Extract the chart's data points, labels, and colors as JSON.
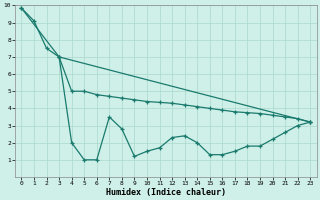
{
  "xlabel": "Humidex (Indice chaleur)",
  "bg_color": "#cff0e8",
  "grid_color": "#aad8cc",
  "line_color": "#1a7a6e",
  "xlim": [
    -0.5,
    23.5
  ],
  "ylim": [
    0,
    10
  ],
  "xticks": [
    0,
    1,
    2,
    3,
    4,
    5,
    6,
    7,
    8,
    9,
    10,
    11,
    12,
    13,
    14,
    15,
    16,
    17,
    18,
    19,
    20,
    21,
    22,
    23
  ],
  "yticks": [
    1,
    2,
    3,
    4,
    5,
    6,
    7,
    8,
    9,
    10
  ],
  "line_steep_x": [
    0,
    1,
    2,
    3,
    23
  ],
  "line_steep_y": [
    9.85,
    9.1,
    7.5,
    7.0,
    3.2
  ],
  "line_gentle_x": [
    0,
    3,
    4,
    5,
    6,
    7,
    8,
    9,
    10,
    11,
    12,
    13,
    14,
    15,
    16,
    17,
    18,
    19,
    20,
    21,
    22,
    23
  ],
  "line_gentle_y": [
    9.85,
    7.0,
    5.0,
    5.0,
    4.8,
    4.7,
    4.6,
    4.5,
    4.4,
    4.35,
    4.3,
    4.2,
    4.1,
    4.0,
    3.9,
    3.8,
    3.75,
    3.7,
    3.6,
    3.5,
    3.4,
    3.2
  ],
  "line_zigzag_x": [
    3,
    4,
    5,
    6,
    7,
    8,
    9,
    10,
    11,
    12,
    13,
    14,
    15,
    16,
    17,
    18,
    19,
    20,
    21,
    22,
    23
  ],
  "line_zigzag_y": [
    7.0,
    2.0,
    1.0,
    1.0,
    3.5,
    2.8,
    1.2,
    1.5,
    1.7,
    2.3,
    2.4,
    2.0,
    1.3,
    1.3,
    1.5,
    1.8,
    1.8,
    2.2,
    2.6,
    3.0,
    3.2
  ]
}
